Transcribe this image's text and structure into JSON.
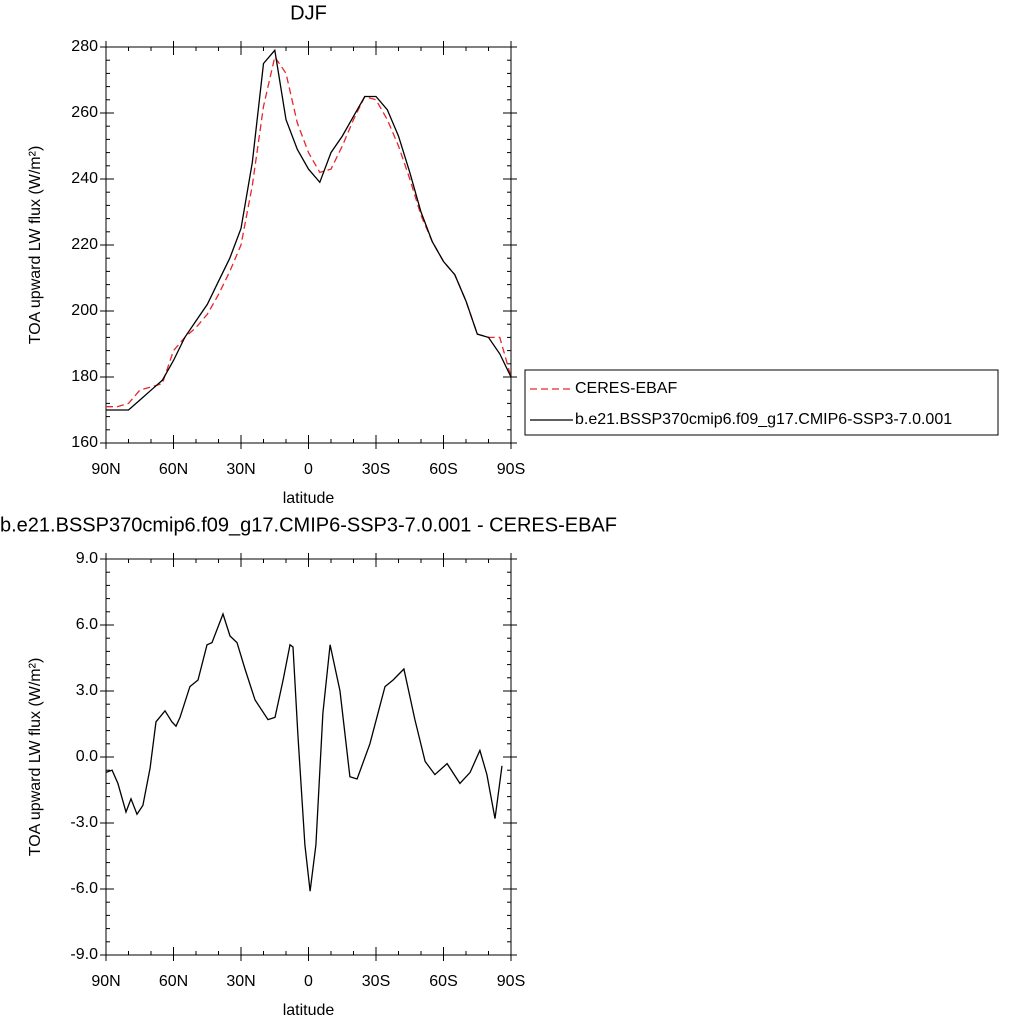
{
  "chart_data": [
    {
      "type": "line",
      "title": "DJF",
      "xlabel": "latitude",
      "ylabel": "TOA upward LW flux (W/m²)",
      "xlim": [
        90,
        -90
      ],
      "xticks": [
        {
          "value": 90,
          "label": "90N"
        },
        {
          "value": 60,
          "label": "60N"
        },
        {
          "value": 30,
          "label": "30N"
        },
        0,
        {
          "value": -30,
          "label": "30S"
        },
        {
          "value": -60,
          "label": "60S"
        },
        {
          "value": -90,
          "label": "90S"
        }
      ],
      "ylim": [
        160,
        280
      ],
      "yticks": [
        160,
        180,
        200,
        220,
        240,
        260,
        280
      ],
      "legend": "right",
      "x": [
        90,
        85,
        80,
        75,
        70,
        65,
        60,
        55,
        50,
        45,
        40,
        35,
        30,
        25,
        20,
        15,
        10,
        5,
        0,
        -5,
        -10,
        -15,
        -20,
        -25,
        -30,
        -35,
        -40,
        -45,
        -50,
        -55,
        -60,
        -65,
        -70,
        -75,
        -80,
        -85,
        -90
      ],
      "series": [
        {
          "name": "CERES-EBAF",
          "color": "#e8262b",
          "dash": true,
          "values": [
            171,
            171,
            172,
            176,
            177,
            178,
            188,
            192,
            195,
            199,
            205,
            212,
            220,
            238,
            262,
            277,
            272,
            257,
            248,
            242,
            243,
            250,
            258,
            265,
            264,
            258,
            250,
            240,
            229,
            221,
            215,
            211,
            203,
            193,
            192,
            192,
            180
          ]
        },
        {
          "name": "b.e21.BSSP370cmip6.f09_g17.CMIP6-SSP3-7.0.001",
          "color": "#000000",
          "dash": false,
          "values": [
            170,
            170,
            170,
            173,
            176,
            179,
            185,
            192,
            197,
            202,
            209,
            216,
            225,
            245,
            275,
            279,
            258,
            249,
            243,
            239,
            248,
            253,
            259,
            265,
            265,
            261,
            253,
            242,
            230,
            221,
            215,
            211,
            203,
            193,
            192,
            187,
            180
          ]
        }
      ]
    },
    {
      "type": "line",
      "title": "b.e21.BSSP370cmip6.f09_g17.CMIP6-SSP3-7.0.001 - CERES-EBAF",
      "xlabel": "latitude",
      "ylabel": "TOA upward LW flux (W/m²)",
      "xlim": [
        90,
        -90
      ],
      "xticks": [
        {
          "value": 90,
          "label": "90N"
        },
        {
          "value": 60,
          "label": "60N"
        },
        {
          "value": 30,
          "label": "30N"
        },
        0,
        {
          "value": -30,
          "label": "30S"
        },
        {
          "value": -60,
          "label": "60S"
        },
        {
          "value": -90,
          "label": "90S"
        }
      ],
      "ylim": [
        -9,
        9
      ],
      "yticks": [
        {
          "value": -9,
          "label": "-9.0"
        },
        {
          "value": -6,
          "label": "-6.0"
        },
        {
          "value": -3,
          "label": "-3.0"
        },
        {
          "value": 0,
          "label": "0.0"
        },
        {
          "value": 3,
          "label": "3.0"
        },
        {
          "value": 6,
          "label": "6.0"
        },
        {
          "value": 9,
          "label": "9.0"
        }
      ],
      "color": "#000000",
      "x": [
        90,
        87.3,
        84.7,
        81.1,
        78.9,
        76.2,
        73.6,
        70.4,
        67.8,
        63.8,
        60.7,
        58.9,
        57.1,
        52.7,
        49.1,
        45.1,
        42.9,
        38,
        34.9,
        31.8,
        28.2,
        23.8,
        18,
        14.9,
        11.3,
        8.2,
        6.9,
        4.7,
        1.6,
        -0.7,
        -3.3,
        -6.4,
        -9.6,
        -14,
        -18.4,
        -21.6,
        -27.3,
        -34,
        -37.6,
        -42.4,
        -47.3,
        -51.8,
        -56.2,
        -61.6,
        -67.3,
        -71.8,
        -76.2,
        -79.3,
        -82.9,
        -86
      ],
      "values": [
        -0.7,
        -0.6,
        -1.2,
        -2.5,
        -1.9,
        -2.6,
        -2.2,
        -0.5,
        1.6,
        2.1,
        1.6,
        1.4,
        1.8,
        3.2,
        3.5,
        5.1,
        5.2,
        6.5,
        5.5,
        5.2,
        4,
        2.6,
        1.7,
        1.8,
        3.5,
        5.1,
        5,
        1,
        -4,
        -6.1,
        -4,
        2,
        5.1,
        3,
        -0.9,
        -1,
        0.6,
        3.2,
        3.5,
        4,
        1.7,
        -0.2,
        -0.8,
        -0.3,
        -1.2,
        -0.7,
        0.3,
        -0.8,
        -2.8,
        -0.4
      ]
    }
  ]
}
